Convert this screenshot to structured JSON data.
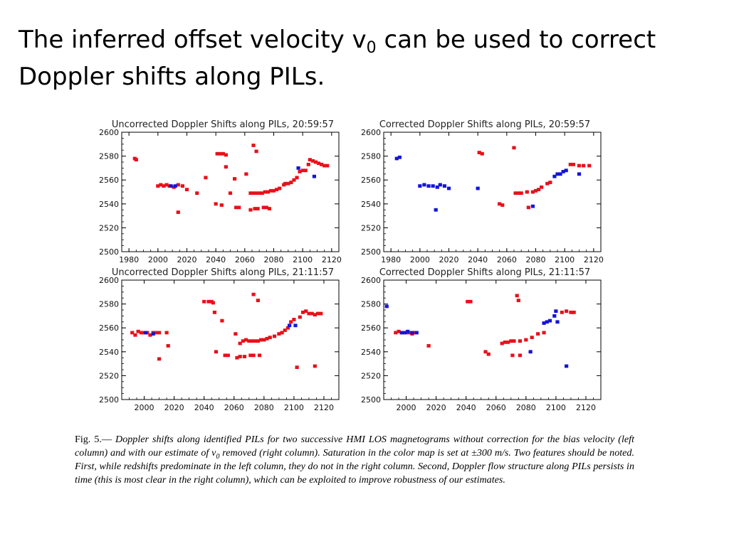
{
  "slide": {
    "title_pre": "The inferred offset velocity v",
    "title_sub": "0",
    "title_post": " can be used to correct Doppler shifts along PILs."
  },
  "colors": {
    "red": "#e8101a",
    "blue": "#1414d8",
    "axis": "#000000"
  },
  "caption": {
    "label": "Fig. 5.— ",
    "text_part1": "Doppler shifts along identified PILs for two successive HMI LOS magnetograms without correction for the bias velocity (left column) and with our estimate of v",
    "text_sub": "0",
    "text_part2": " removed (right column). Saturation in the color map is set at ±300 m/s. Two features should be noted. First, while redshifts predominate in the left column, they do not in the right column. Second, Doppler flow structure along PILs persists in time (this is most clear in the right column), which can be exploited to improve robustness of our estimates."
  },
  "chart_data": [
    {
      "type": "scatter",
      "title": "Uncorrected Doppler Shifts along PILs, 20:59:57",
      "xlim": [
        1975,
        2125
      ],
      "ylim": [
        2500,
        2600
      ],
      "xticks": [
        1980,
        2000,
        2020,
        2040,
        2060,
        2080,
        2100,
        2120
      ],
      "yticks": [
        2500,
        2520,
        2540,
        2560,
        2580,
        2600
      ],
      "xlabel": "",
      "ylabel": "",
      "series": [
        {
          "color": "#e8101a",
          "points": [
            [
              1984,
              2578
            ],
            [
              1985,
              2577
            ],
            [
              2000,
              2555
            ],
            [
              2002,
              2556
            ],
            [
              2004,
              2555
            ],
            [
              2006,
              2556
            ],
            [
              2008,
              2555
            ],
            [
              2011,
              2554
            ],
            [
              2014,
              2556
            ],
            [
              2017,
              2555
            ],
            [
              2020,
              2552
            ],
            [
              2027,
              2549
            ],
            [
              2014,
              2533
            ],
            [
              2033,
              2562
            ],
            [
              2041,
              2582
            ],
            [
              2043,
              2582
            ],
            [
              2045,
              2582
            ],
            [
              2047,
              2581
            ],
            [
              2047,
              2571
            ],
            [
              2050,
              2549
            ],
            [
              2053,
              2561
            ],
            [
              2061,
              2565
            ],
            [
              2040,
              2540
            ],
            [
              2044,
              2539
            ],
            [
              2054,
              2537
            ],
            [
              2056,
              2537
            ],
            [
              2064,
              2535
            ],
            [
              2067,
              2536
            ],
            [
              2069,
              2536
            ],
            [
              2073,
              2537
            ],
            [
              2075,
              2537
            ],
            [
              2077,
              2536
            ],
            [
              2066,
              2589
            ],
            [
              2068,
              2584
            ],
            [
              2064,
              2549
            ],
            [
              2066,
              2549
            ],
            [
              2068,
              2549
            ],
            [
              2070,
              2549
            ],
            [
              2072,
              2549
            ],
            [
              2074,
              2550
            ],
            [
              2076,
              2550
            ],
            [
              2078,
              2551
            ],
            [
              2080,
              2551
            ],
            [
              2082,
              2552
            ],
            [
              2084,
              2553
            ],
            [
              2087,
              2556
            ],
            [
              2088,
              2557
            ],
            [
              2090,
              2557
            ],
            [
              2092,
              2558
            ],
            [
              2094,
              2560
            ],
            [
              2096,
              2562
            ],
            [
              2098,
              2567
            ],
            [
              2100,
              2568
            ],
            [
              2102,
              2568
            ],
            [
              2104,
              2573
            ],
            [
              2105,
              2577
            ],
            [
              2107,
              2576
            ],
            [
              2109,
              2575
            ],
            [
              2111,
              2574
            ],
            [
              2113,
              2573
            ],
            [
              2115,
              2572
            ],
            [
              2117,
              2572
            ]
          ]
        },
        {
          "color": "#1414d8",
          "points": [
            [
              2009,
              2555
            ],
            [
              2012,
              2555
            ],
            [
              2097,
              2570
            ],
            [
              2108,
              2563
            ]
          ]
        }
      ]
    },
    {
      "type": "scatter",
      "title": "Corrected Doppler Shifts along PILs, 20:59:57",
      "xlim": [
        1975,
        2125
      ],
      "ylim": [
        2500,
        2600
      ],
      "xticks": [
        1980,
        2000,
        2020,
        2040,
        2060,
        2080,
        2100,
        2120
      ],
      "yticks": [
        2500,
        2520,
        2540,
        2560,
        2580,
        2600
      ],
      "xlabel": "",
      "ylabel": "",
      "series": [
        {
          "color": "#e8101a",
          "points": [
            [
              2041,
              2583
            ],
            [
              2043,
              2582
            ],
            [
              2065,
              2587
            ],
            [
              2066,
              2549
            ],
            [
              2068,
              2549
            ],
            [
              2070,
              2549
            ],
            [
              2074,
              2550
            ],
            [
              2078,
              2550
            ],
            [
              2080,
              2551
            ],
            [
              2082,
              2552
            ],
            [
              2084,
              2554
            ],
            [
              2088,
              2557
            ],
            [
              2090,
              2558
            ],
            [
              2104,
              2573
            ],
            [
              2106,
              2573
            ],
            [
              2110,
              2572
            ],
            [
              2113,
              2572
            ],
            [
              2117,
              2572
            ],
            [
              2055,
              2540
            ],
            [
              2057,
              2539
            ],
            [
              2075,
              2537
            ]
          ]
        },
        {
          "color": "#1414d8",
          "points": [
            [
              1984,
              2578
            ],
            [
              1986,
              2579
            ],
            [
              2000,
              2555
            ],
            [
              2003,
              2556
            ],
            [
              2006,
              2555
            ],
            [
              2009,
              2555
            ],
            [
              2012,
              2554
            ],
            [
              2014,
              2556
            ],
            [
              2017,
              2555
            ],
            [
              2020,
              2553
            ],
            [
              2011,
              2535
            ],
            [
              2093,
              2563
            ],
            [
              2095,
              2565
            ],
            [
              2097,
              2565
            ],
            [
              2099,
              2567
            ],
            [
              2101,
              2568
            ],
            [
              2078,
              2538
            ],
            [
              2110,
              2565
            ],
            [
              2040,
              2553
            ]
          ]
        }
      ]
    },
    {
      "type": "scatter",
      "title": "Uncorrected Doppler Shifts along PILs, 21:11:57",
      "xlim": [
        1985,
        2130
      ],
      "ylim": [
        2500,
        2600
      ],
      "xticks": [
        2000,
        2020,
        2040,
        2060,
        2080,
        2100,
        2120
      ],
      "yticks": [
        2500,
        2520,
        2540,
        2560,
        2580,
        2600
      ],
      "xlabel": "",
      "ylabel": "",
      "series": [
        {
          "color": "#e8101a",
          "points": [
            [
              1992,
              2556
            ],
            [
              1994,
              2554
            ],
            [
              1996,
              2557
            ],
            [
              1998,
              2556
            ],
            [
              2000,
              2556
            ],
            [
              2002,
              2556
            ],
            [
              2004,
              2554
            ],
            [
              2006,
              2556
            ],
            [
              2008,
              2556
            ],
            [
              2010,
              2556
            ],
            [
              2015,
              2556
            ],
            [
              2016,
              2545
            ],
            [
              2010,
              2534
            ],
            [
              2040,
              2582
            ],
            [
              2043,
              2582
            ],
            [
              2045,
              2582
            ],
            [
              2046,
              2581
            ],
            [
              2047,
              2573
            ],
            [
              2052,
              2566
            ],
            [
              2061,
              2555
            ],
            [
              2064,
              2547
            ],
            [
              2066,
              2549
            ],
            [
              2068,
              2550
            ],
            [
              2070,
              2549
            ],
            [
              2072,
              2549
            ],
            [
              2074,
              2549
            ],
            [
              2076,
              2549
            ],
            [
              2078,
              2550
            ],
            [
              2080,
              2550
            ],
            [
              2082,
              2551
            ],
            [
              2084,
              2552
            ],
            [
              2087,
              2553
            ],
            [
              2090,
              2555
            ],
            [
              2092,
              2556
            ],
            [
              2094,
              2558
            ],
            [
              2096,
              2560
            ],
            [
              2098,
              2565
            ],
            [
              2100,
              2567
            ],
            [
              2104,
              2569
            ],
            [
              2106,
              2573
            ],
            [
              2108,
              2574
            ],
            [
              2110,
              2572
            ],
            [
              2112,
              2572
            ],
            [
              2114,
              2571
            ],
            [
              2116,
              2572
            ],
            [
              2118,
              2572
            ],
            [
              2073,
              2588
            ],
            [
              2076,
              2583
            ],
            [
              2048,
              2540
            ],
            [
              2054,
              2537
            ],
            [
              2056,
              2537
            ],
            [
              2062,
              2535
            ],
            [
              2064,
              2536
            ],
            [
              2067,
              2536
            ],
            [
              2071,
              2537
            ],
            [
              2073,
              2537
            ],
            [
              2077,
              2537
            ],
            [
              2102,
              2527
            ],
            [
              2114,
              2528
            ]
          ]
        },
        {
          "color": "#1414d8",
          "points": [
            [
              2001,
              2556
            ],
            [
              2006,
              2555
            ],
            [
              2097,
              2562
            ],
            [
              2101,
              2562
            ]
          ]
        }
      ]
    },
    {
      "type": "scatter",
      "title": "Corrected Doppler Shifts along PILs, 21:11:57",
      "xlim": [
        1985,
        2130
      ],
      "ylim": [
        2500,
        2600
      ],
      "xticks": [
        2000,
        2020,
        2040,
        2060,
        2080,
        2100,
        2120
      ],
      "yticks": [
        2500,
        2520,
        2540,
        2560,
        2580,
        2600
      ],
      "xlabel": "",
      "ylabel": "",
      "series": [
        {
          "color": "#e8101a",
          "points": [
            [
              1993,
              2556
            ],
            [
              1995,
              2557
            ],
            [
              1997,
              2556
            ],
            [
              2000,
              2556
            ],
            [
              2002,
              2556
            ],
            [
              2004,
              2555
            ],
            [
              2006,
              2556
            ],
            [
              2041,
              2582
            ],
            [
              2043,
              2582
            ],
            [
              2074,
              2587
            ],
            [
              2075,
              2583
            ],
            [
              2064,
              2547
            ],
            [
              2066,
              2548
            ],
            [
              2068,
              2548
            ],
            [
              2070,
              2549
            ],
            [
              2072,
              2549
            ],
            [
              2076,
              2549
            ],
            [
              2080,
              2550
            ],
            [
              2084,
              2552
            ],
            [
              2088,
              2555
            ],
            [
              2092,
              2556
            ],
            [
              2104,
              2573
            ],
            [
              2107,
              2574
            ],
            [
              2110,
              2573
            ],
            [
              2112,
              2573
            ],
            [
              2053,
              2540
            ],
            [
              2055,
              2538
            ],
            [
              2071,
              2537
            ],
            [
              2076,
              2537
            ],
            [
              2015,
              2545
            ]
          ]
        },
        {
          "color": "#1414d8",
          "points": [
            [
              1987,
              2578
            ],
            [
              1997,
              2556
            ],
            [
              1999,
              2556
            ],
            [
              2001,
              2557
            ],
            [
              2004,
              2556
            ],
            [
              2007,
              2556
            ],
            [
              2092,
              2564
            ],
            [
              2094,
              2565
            ],
            [
              2096,
              2566
            ],
            [
              2099,
              2570
            ],
            [
              2101,
              2565
            ],
            [
              2100,
              2574
            ],
            [
              2107,
              2528
            ],
            [
              2083,
              2540
            ]
          ]
        }
      ]
    }
  ]
}
